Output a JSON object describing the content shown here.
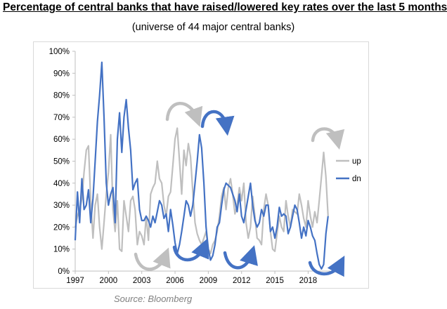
{
  "title": "Percentage of central banks that have raised/lowered key rates over the last 5 months",
  "subtitle": "(universe of 44 major central banks)",
  "source": "Source: Bloomberg",
  "chart_data": {
    "type": "line",
    "title": "Percentage of central banks that have raised/lowered key rates over the last 5 months",
    "subtitle": "(universe of 44 major central banks)",
    "xlabel": "",
    "ylabel": "",
    "xlim": [
      1997.0,
      2020.0
    ],
    "ylim": [
      0,
      100
    ],
    "x_ticks": [
      1997,
      2000,
      2003,
      2006,
      2009,
      2012,
      2015,
      2018
    ],
    "x_tick_labels": [
      "1997",
      "2000",
      "2003",
      "2006",
      "2009",
      "2012",
      "2015",
      "2018"
    ],
    "y_ticks": [
      0,
      10,
      20,
      30,
      40,
      50,
      60,
      70,
      80,
      90,
      100
    ],
    "y_tick_labels": [
      "0%",
      "10%",
      "20%",
      "30%",
      "40%",
      "50%",
      "60%",
      "70%",
      "80%",
      "90%",
      "100%"
    ],
    "grid": false,
    "legend_position": "right",
    "series": [
      {
        "name": "up",
        "color": "#bfbfbf",
        "x": [
          1997.0,
          1997.2,
          1997.4,
          1997.6,
          1997.8,
          1998.0,
          1998.2,
          1998.4,
          1998.6,
          1998.8,
          1999.0,
          1999.2,
          1999.4,
          1999.6,
          1999.8,
          2000.0,
          2000.2,
          2000.4,
          2000.6,
          2000.8,
          2001.0,
          2001.2,
          2001.4,
          2001.6,
          2001.8,
          2002.0,
          2002.2,
          2002.4,
          2002.6,
          2002.8,
          2003.0,
          2003.2,
          2003.4,
          2003.6,
          2003.8,
          2004.0,
          2004.2,
          2004.4,
          2004.6,
          2004.8,
          2005.0,
          2005.2,
          2005.4,
          2005.6,
          2005.8,
          2006.0,
          2006.2,
          2006.4,
          2006.6,
          2006.8,
          2007.0,
          2007.2,
          2007.4,
          2007.6,
          2007.8,
          2008.0,
          2008.2,
          2008.4,
          2008.6,
          2008.8,
          2009.0,
          2009.2,
          2009.4,
          2009.6,
          2009.8,
          2010.0,
          2010.2,
          2010.4,
          2010.6,
          2010.8,
          2011.0,
          2011.2,
          2011.4,
          2011.6,
          2011.8,
          2012.0,
          2012.2,
          2012.4,
          2012.6,
          2012.8,
          2013.0,
          2013.2,
          2013.4,
          2013.6,
          2013.8,
          2014.0,
          2014.2,
          2014.4,
          2014.6,
          2014.8,
          2015.0,
          2015.2,
          2015.4,
          2015.6,
          2015.8,
          2016.0,
          2016.2,
          2016.4,
          2016.6,
          2016.8,
          2017.0,
          2017.2,
          2017.4,
          2017.6,
          2017.8,
          2018.0,
          2018.2,
          2018.4,
          2018.6,
          2018.8,
          2019.0,
          2019.2,
          2019.4,
          2019.6,
          2019.8
        ],
        "values": [
          20,
          25,
          28,
          33,
          45,
          55,
          57,
          32,
          15,
          30,
          35,
          20,
          10,
          22,
          35,
          45,
          62,
          28,
          18,
          32,
          10,
          9,
          32,
          25,
          18,
          32,
          34,
          28,
          12,
          18,
          16,
          12,
          25,
          14,
          35,
          38,
          40,
          50,
          42,
          40,
          30,
          25,
          34,
          36,
          48,
          60,
          65,
          50,
          35,
          55,
          48,
          58,
          52,
          36,
          22,
          17,
          14,
          12,
          15,
          18,
          10,
          8,
          12,
          14,
          18,
          25,
          34,
          38,
          28,
          38,
          42,
          35,
          26,
          30,
          38,
          32,
          40,
          22,
          15,
          20,
          34,
          25,
          15,
          14,
          12,
          28,
          35,
          30,
          18,
          10,
          9,
          17,
          25,
          20,
          18,
          32,
          25,
          20,
          28,
          27,
          26,
          35,
          30,
          24,
          20,
          32,
          25,
          20,
          27,
          22,
          32,
          43,
          54,
          43,
          25
        ]
      },
      {
        "name": "dn",
        "color": "#4472c4",
        "x": [
          1997.0,
          1997.2,
          1997.4,
          1997.6,
          1997.8,
          1998.0,
          1998.2,
          1998.4,
          1998.6,
          1998.8,
          1999.0,
          1999.2,
          1999.4,
          1999.6,
          1999.8,
          2000.0,
          2000.2,
          2000.4,
          2000.6,
          2000.8,
          2001.0,
          2001.2,
          2001.4,
          2001.6,
          2001.8,
          2002.0,
          2002.2,
          2002.4,
          2002.6,
          2002.8,
          2003.0,
          2003.2,
          2003.4,
          2003.6,
          2003.8,
          2004.0,
          2004.2,
          2004.4,
          2004.6,
          2004.8,
          2005.0,
          2005.2,
          2005.4,
          2005.6,
          2005.8,
          2006.0,
          2006.2,
          2006.4,
          2006.6,
          2006.8,
          2007.0,
          2007.2,
          2007.4,
          2007.6,
          2007.8,
          2008.0,
          2008.2,
          2008.4,
          2008.6,
          2008.8,
          2009.0,
          2009.2,
          2009.4,
          2009.6,
          2009.8,
          2010.0,
          2010.2,
          2010.4,
          2010.6,
          2010.8,
          2011.0,
          2011.2,
          2011.4,
          2011.6,
          2011.8,
          2012.0,
          2012.2,
          2012.4,
          2012.6,
          2012.8,
          2013.0,
          2013.2,
          2013.4,
          2013.6,
          2013.8,
          2014.0,
          2014.2,
          2014.4,
          2014.6,
          2014.8,
          2015.0,
          2015.2,
          2015.4,
          2015.6,
          2015.8,
          2016.0,
          2016.2,
          2016.4,
          2016.6,
          2016.8,
          2017.0,
          2017.2,
          2017.4,
          2017.6,
          2017.8,
          2018.0,
          2018.2,
          2018.4,
          2018.6,
          2018.8,
          2019.0,
          2019.2,
          2019.4,
          2019.6,
          2019.8
        ],
        "values": [
          14,
          36,
          22,
          42,
          28,
          30,
          37,
          22,
          33,
          50,
          68,
          80,
          95,
          70,
          40,
          30,
          35,
          38,
          22,
          60,
          72,
          54,
          70,
          78,
          65,
          55,
          37,
          40,
          42,
          28,
          23,
          23,
          25,
          23,
          20,
          25,
          22,
          27,
          32,
          30,
          24,
          26,
          18,
          28,
          21,
          13,
          8,
          12,
          18,
          25,
          32,
          30,
          25,
          30,
          40,
          50,
          62,
          56,
          40,
          20,
          10,
          5,
          7,
          12,
          20,
          22,
          30,
          37,
          40,
          39,
          38,
          35,
          32,
          27,
          35,
          25,
          22,
          28,
          34,
          40,
          30,
          23,
          20,
          22,
          28,
          25,
          30,
          30,
          18,
          20,
          15,
          20,
          29,
          25,
          26,
          25,
          17,
          20,
          25,
          30,
          28,
          22,
          15,
          20,
          16,
          23,
          20,
          16,
          14,
          8,
          3,
          1,
          3,
          17,
          25
        ]
      }
    ],
    "annotations": [
      "curved arrows indicating turning points"
    ]
  }
}
